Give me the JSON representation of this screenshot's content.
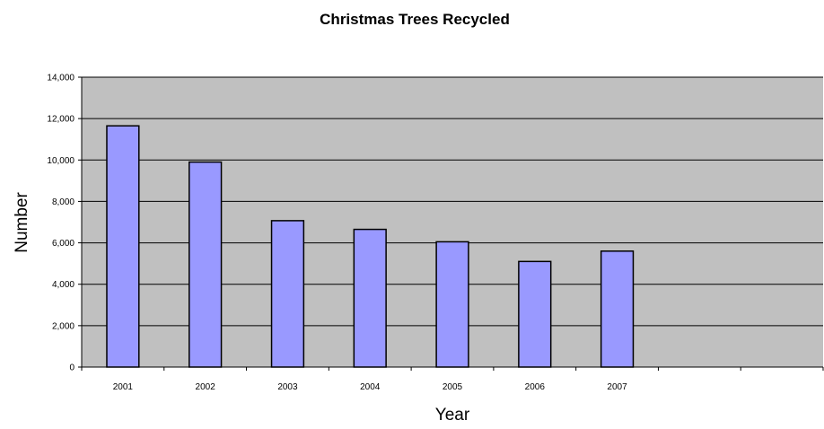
{
  "chart_data": {
    "type": "bar",
    "title": "Christmas Trees Recycled",
    "xlabel": "Year",
    "ylabel": "Number",
    "categories": [
      "2001",
      "2002",
      "2003",
      "2004",
      "2005",
      "2006",
      "2007",
      "",
      ""
    ],
    "values": [
      11650,
      9900,
      7070,
      6650,
      6050,
      5100,
      5600,
      null,
      null
    ],
    "ylim": [
      0,
      14000
    ],
    "yticks": [
      "0",
      "2,000",
      "4,000",
      "6,000",
      "8,000",
      "10,000",
      "12,000",
      "14,000"
    ],
    "grid": true,
    "legend": "none",
    "colors": {
      "bar_fill": "#9999ff",
      "bar_stroke": "#000000",
      "plot_background": "#c0c0c0",
      "gridline": "#000000",
      "axis": "#000000",
      "text": "#000000"
    }
  }
}
